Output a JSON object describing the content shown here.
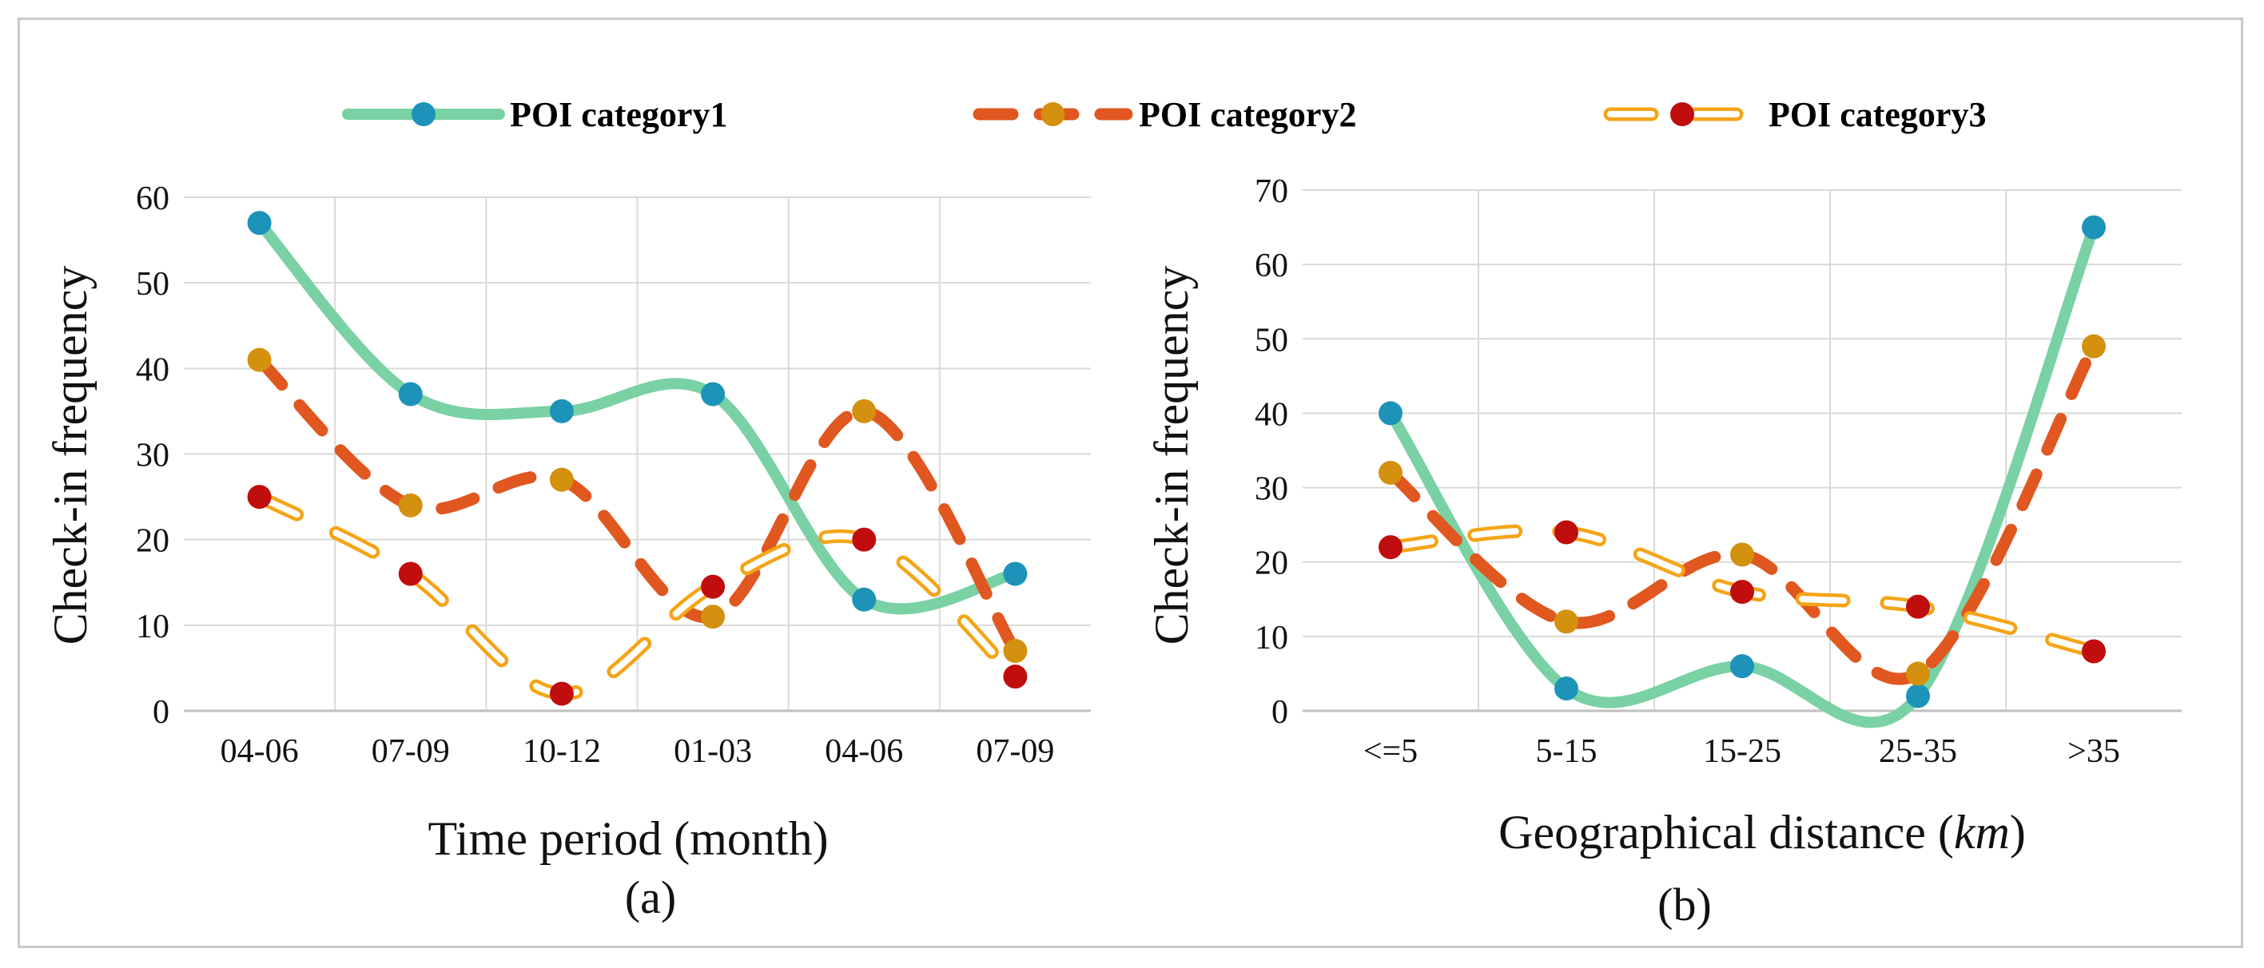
{
  "colors": {
    "series1": "#79d1a4",
    "series1_marker": "#1d93b9",
    "series2": "#e0571f",
    "series2_marker": "#d4900f",
    "series3": "#f5a416",
    "series3_marker": "#c00d0d",
    "grid": "#d9d9d9",
    "axis": "#bfbfbf"
  },
  "legend": [
    {
      "name": "POI category1",
      "style": "solid"
    },
    {
      "name": "POI category2",
      "style": "dash"
    },
    {
      "name": "POI category3",
      "style": "hollow-dash"
    }
  ],
  "chart_data": [
    {
      "type": "line",
      "id": "a",
      "caption": "(a)",
      "xlabel": "Time period (month)",
      "ylabel": "Check-in frequency",
      "categories": [
        "04-06",
        "07-09",
        "10-12",
        "01-03",
        "04-06",
        "07-09"
      ],
      "ylim": [
        0,
        60
      ],
      "yticks": [
        "0",
        "10",
        "20",
        "30",
        "40",
        "50",
        "60"
      ],
      "grid": true,
      "series": [
        {
          "name": "POI category1",
          "values": [
            57,
            37,
            35,
            37,
            13,
            16
          ]
        },
        {
          "name": "POI category2",
          "values": [
            41,
            24,
            27,
            11,
            35,
            7
          ]
        },
        {
          "name": "POI category3",
          "values": [
            25,
            16,
            2,
            14.5,
            20,
            4
          ]
        }
      ]
    },
    {
      "type": "line",
      "id": "b",
      "caption": "(b)",
      "xlabel_main": "Geographical distance (",
      "xlabel_italic": "km",
      "xlabel_end": ")",
      "ylabel": "Check-in frequency",
      "categories": [
        "<=5",
        "5-15",
        "15-25",
        "25-35",
        ">35"
      ],
      "ylim": [
        0,
        70
      ],
      "yticks": [
        "0",
        "10",
        "20",
        "30",
        "40",
        "50",
        "60",
        "70"
      ],
      "grid": true,
      "series": [
        {
          "name": "POI category1",
          "values": [
            40,
            3,
            6,
            2,
            65
          ]
        },
        {
          "name": "POI category2",
          "values": [
            32,
            12,
            21,
            5,
            49
          ]
        },
        {
          "name": "POI category3",
          "values": [
            22,
            24,
            16,
            14,
            8
          ]
        }
      ]
    }
  ]
}
